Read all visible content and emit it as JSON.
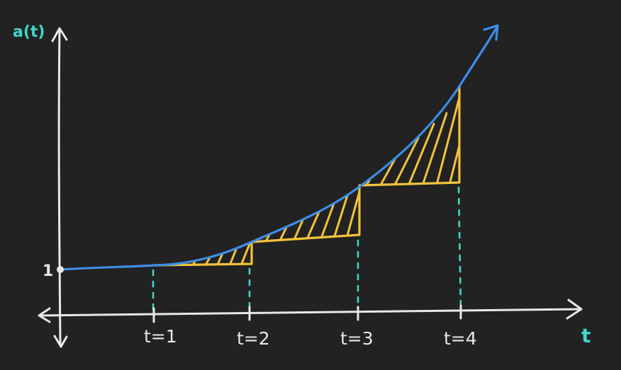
{
  "diagram": {
    "y_axis_label": "a(t)",
    "x_axis_label": "t",
    "y_tick_label": "1",
    "x_ticks": [
      "t=1",
      "t=2",
      "t=3",
      "t=4"
    ],
    "colors": {
      "background": "#222222",
      "axes": "#e8e8e8",
      "curve": "#3d8ee8",
      "steps": "#f2c33a",
      "guides": "#3fd6c8",
      "axis_labels": "#3fd6c8"
    }
  }
}
